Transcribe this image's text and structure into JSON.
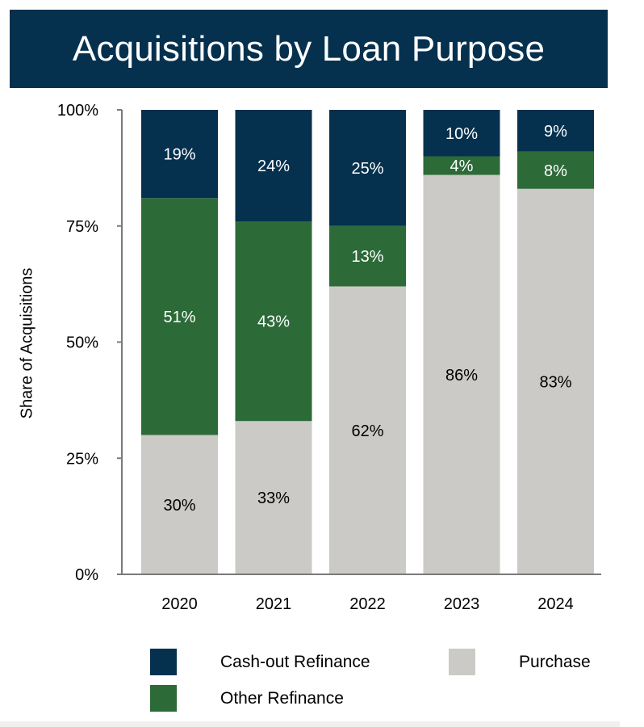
{
  "chart_data": {
    "type": "bar",
    "stacked": true,
    "title": "Acquisitions by Loan Purpose",
    "ylabel": "Share of Acquisitions",
    "xlabel": "",
    "ylim": [
      0,
      100
    ],
    "y_ticks": [
      "0%",
      "25%",
      "50%",
      "75%",
      "100%"
    ],
    "categories": [
      "2020",
      "2021",
      "2022",
      "2023",
      "2024"
    ],
    "series": [
      {
        "name": "Purchase",
        "color": "#cbcac6",
        "label_color": "#000000",
        "values": [
          30,
          33,
          62,
          86,
          83
        ],
        "labels": [
          "30%",
          "33%",
          "62%",
          "86%",
          "83%"
        ]
      },
      {
        "name": "Other Refinance",
        "color": "#2c6a38",
        "label_color": "#ffffff",
        "values": [
          51,
          43,
          13,
          4,
          8
        ],
        "labels": [
          "51%",
          "43%",
          "13%",
          "4%",
          "8%"
        ]
      },
      {
        "name": "Cash-out Refinance",
        "color": "#05314f",
        "label_color": "#ffffff",
        "values": [
          19,
          24,
          25,
          10,
          9
        ],
        "labels": [
          "19%",
          "24%",
          "25%",
          "10%",
          "9%"
        ]
      }
    ],
    "legend": [
      {
        "name": "Cash-out Refinance",
        "color": "#05314f"
      },
      {
        "name": "Purchase",
        "color": "#cbcac6"
      },
      {
        "name": "Other Refinance",
        "color": "#2c6a38"
      }
    ],
    "legend_position": "bottom",
    "grid": false
  }
}
